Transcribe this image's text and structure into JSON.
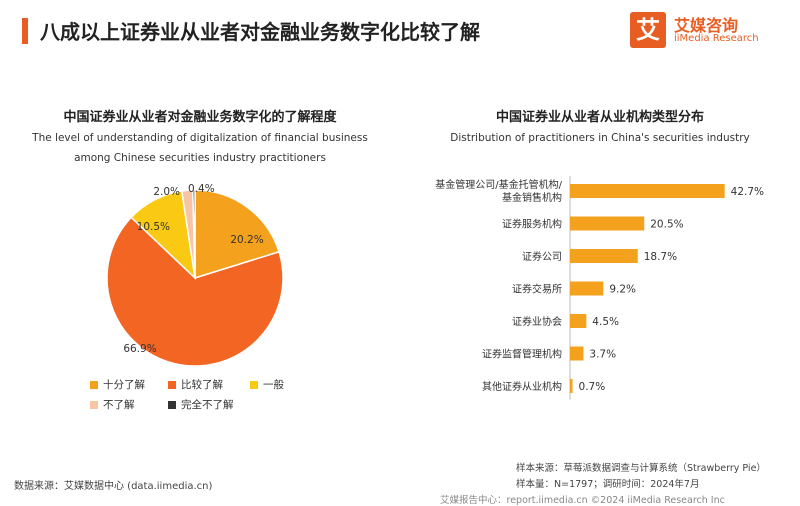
{
  "header": {
    "title": "八成以上证券业从业者对金融业务数字化比较了解",
    "brand_mark": "艾",
    "brand_cn": "艾媒咨询",
    "brand_en": "iiMedia Research"
  },
  "colors": {
    "accent": "#e85d22",
    "bar": "#f4a11d",
    "pie": [
      "#f4a11d",
      "#f26522",
      "#f9c913",
      "#f7c4a4",
      "#333333"
    ]
  },
  "chart_data": [
    {
      "type": "pie",
      "title": "中国证券业从业者对金融业务数字化的了解程度",
      "subtitle": "The level of understanding of digitalization of financial business among Chinese securities industry practitioners",
      "categories": [
        "十分了解",
        "比较了解",
        "一般",
        "不了解",
        "完全不了解"
      ],
      "values": [
        20.2,
        66.9,
        10.5,
        2.0,
        0.4
      ],
      "labels": [
        "20.2%",
        "66.9%",
        "10.5%",
        "2.0%",
        "0.4%"
      ],
      "legend": "bottom"
    },
    {
      "type": "bar",
      "orientation": "horizontal",
      "title": "中国证券业从业者从业机构类型分布",
      "subtitle": "Distribution of practitioners in China's securities industry",
      "categories": [
        "基金管理公司/基金托管机构/基金销售机构",
        "证券服务机构",
        "证券公司",
        "证券交易所",
        "证券业协会",
        "证券监督管理机构",
        "其他证券从业机构"
      ],
      "category_lines": [
        [
          "基金管理公司/基金托管机构/",
          "基金销售机构"
        ],
        [
          "证券服务机构"
        ],
        [
          "证券公司"
        ],
        [
          "证券交易所"
        ],
        [
          "证券业协会"
        ],
        [
          "证券监督管理机构"
        ],
        [
          "其他证券从业机构"
        ]
      ],
      "values": [
        42.7,
        20.5,
        18.7,
        9.2,
        4.5,
        3.7,
        0.7
      ],
      "labels": [
        "42.7%",
        "20.5%",
        "18.7%",
        "9.2%",
        "4.5%",
        "3.7%",
        "0.7%"
      ],
      "xlim": [
        0,
        45
      ],
      "grid": false
    }
  ],
  "footer": {
    "source": "数据来源：艾媒数据中心 (data.iimedia.cn)",
    "sample_source": "样本来源：草莓派数据调查与计算系统（Strawberry Pie）",
    "sample_size": "样本量：N=1797；调研时间：2024年7月",
    "bottom": "艾媒报告中心：report.iimedia.cn    ©2024 iiMedia Research Inc"
  }
}
